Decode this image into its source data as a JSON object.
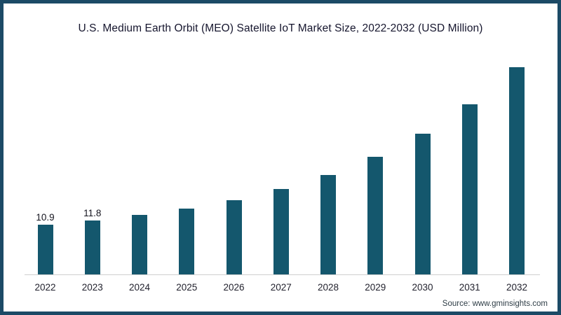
{
  "chart_data": {
    "type": "bar",
    "title": "U.S. Medium Earth Orbit (MEO) Satellite IoT Market Size, 2022-2032 (USD Million)",
    "categories": [
      "2022",
      "2023",
      "2024",
      "2025",
      "2026",
      "2027",
      "2028",
      "2029",
      "2030",
      "2031",
      "2032"
    ],
    "values": [
      10.9,
      11.8,
      12.9,
      14.4,
      16.2,
      18.6,
      21.7,
      25.6,
      30.6,
      37.1,
      45.1
    ],
    "bar_labels": [
      "10.9",
      "11.8",
      "",
      "",
      "",
      "",
      "",
      "",
      "",
      "",
      ""
    ],
    "xlabel": "",
    "ylabel": "",
    "ylim": [
      0,
      46
    ],
    "gridlines": false,
    "legend": "none",
    "bar_color": "#14576d",
    "axis_line_color": "#cfcfcf",
    "title_color": "#16162e",
    "value_label_color": "#14141e",
    "tick_label_color": "#22222e"
  },
  "footer": {
    "source_label": "Source: www.gminsights.com"
  },
  "frame": {
    "border_color": "#1c4a66",
    "background_color": "#ffffff"
  }
}
